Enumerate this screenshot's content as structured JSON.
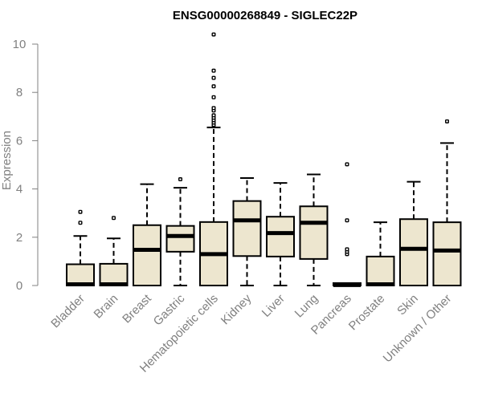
{
  "chart_data": {
    "type": "boxplot",
    "title": "ENSG00000268849 - SIGLEC22P",
    "xlabel": "",
    "ylabel": "Expression",
    "ylim": [
      0,
      10.4
    ],
    "yticks": [
      0,
      2,
      4,
      6,
      8,
      10
    ],
    "grid": false,
    "box_color": "#ede6cf",
    "categories": [
      "Bladder",
      "Brain",
      "Breast",
      "Gastric",
      "Hematopoietic cells",
      "Kidney",
      "Liver",
      "Lung",
      "Pancreas",
      "Prostate",
      "Skin",
      "Unknown / Other"
    ],
    "series": [
      {
        "name": "Bladder",
        "whisker_low": 0,
        "q1": 0,
        "median": 0.05,
        "q3": 0.88,
        "whisker_high": 2.05,
        "outliers": [
          2.6,
          3.05
        ]
      },
      {
        "name": "Brain",
        "whisker_low": 0,
        "q1": 0,
        "median": 0.05,
        "q3": 0.9,
        "whisker_high": 1.95,
        "outliers": [
          2.8
        ]
      },
      {
        "name": "Breast",
        "whisker_low": 0,
        "q1": 0,
        "median": 1.48,
        "q3": 2.5,
        "whisker_high": 4.2,
        "outliers": []
      },
      {
        "name": "Gastric",
        "whisker_low": 0,
        "q1": 1.4,
        "median": 2.05,
        "q3": 2.47,
        "whisker_high": 4.05,
        "outliers": [
          4.4
        ]
      },
      {
        "name": "Hematopoietic cells",
        "whisker_low": 0,
        "q1": 0,
        "median": 1.3,
        "q3": 2.63,
        "whisker_high": 6.55,
        "outliers": [
          6.65,
          6.75,
          6.85,
          6.95,
          7.05,
          7.25,
          7.35,
          7.8,
          8.25,
          8.6,
          8.9,
          10.4
        ]
      },
      {
        "name": "Kidney",
        "whisker_low": 0,
        "q1": 1.22,
        "median": 2.7,
        "q3": 3.5,
        "whisker_high": 4.45,
        "outliers": []
      },
      {
        "name": "Liver",
        "whisker_low": 0,
        "q1": 1.2,
        "median": 2.17,
        "q3": 2.85,
        "whisker_high": 4.25,
        "outliers": []
      },
      {
        "name": "Lung",
        "whisker_low": 0,
        "q1": 1.1,
        "median": 2.6,
        "q3": 3.28,
        "whisker_high": 4.6,
        "outliers": []
      },
      {
        "name": "Pancreas",
        "whisker_low": 0,
        "q1": 0,
        "median": 0.02,
        "q3": 0.1,
        "whisker_high": 0.1,
        "outliers": [
          1.3,
          1.4,
          1.5,
          2.7,
          5.02
        ]
      },
      {
        "name": "Prostate",
        "whisker_low": 0,
        "q1": 0,
        "median": 0.05,
        "q3": 1.2,
        "whisker_high": 2.62,
        "outliers": []
      },
      {
        "name": "Skin",
        "whisker_low": 0,
        "q1": 0,
        "median": 1.52,
        "q3": 2.75,
        "whisker_high": 4.3,
        "outliers": []
      },
      {
        "name": "Unknown / Other",
        "whisker_low": 0,
        "q1": 0,
        "median": 1.45,
        "q3": 2.62,
        "whisker_high": 5.9,
        "outliers": [
          6.8
        ]
      }
    ]
  }
}
